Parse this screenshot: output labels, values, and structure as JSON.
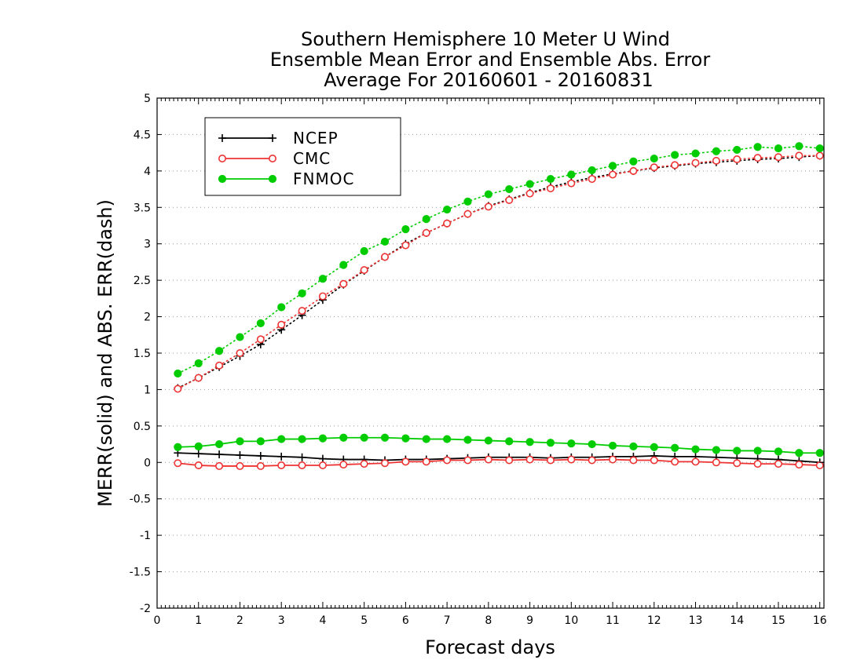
{
  "chart_data": {
    "type": "line",
    "title": [
      "Southern Hemisphere 10 Meter U Wind",
      "Ensemble Mean Error and Ensemble Abs. Error",
      "Average For 20160601 - 20160831"
    ],
    "xlabel": "Forecast days",
    "ylabel": "MERR(solid) and ABS. ERR(dash)",
    "xlim": [
      0,
      16.1
    ],
    "ylim": [
      -2,
      5
    ],
    "xticks": [
      0,
      1,
      2,
      3,
      4,
      5,
      6,
      7,
      8,
      9,
      10,
      11,
      12,
      13,
      14,
      15,
      16
    ],
    "xtick_labels": [
      "0",
      "1",
      "2",
      "3",
      "4",
      "5",
      "6",
      "7",
      "8",
      "9",
      "10",
      "11",
      "12",
      "13",
      "14",
      "15",
      "16"
    ],
    "yticks": [
      -2,
      -1.5,
      -1,
      -0.5,
      0,
      0.5,
      1,
      1.5,
      2,
      2.5,
      3,
      3.5,
      4,
      4.5,
      5
    ],
    "ytick_labels": [
      "-2",
      "-1.5",
      "-1",
      "-0.5",
      "0",
      "0.5",
      "1",
      "1.5",
      "2",
      "2.5",
      "3",
      "3.5",
      "4",
      "4.5",
      "5"
    ],
    "grid": "horizontal dotted",
    "legend_position": "top-left",
    "x": [
      0.5,
      1,
      1.5,
      2,
      2.5,
      3,
      3.5,
      4,
      4.5,
      5,
      5.5,
      6,
      6.5,
      7,
      7.5,
      8,
      8.5,
      9,
      9.5,
      10,
      10.5,
      11,
      11.5,
      12,
      12.5,
      13,
      13.5,
      14,
      14.5,
      15,
      15.5,
      16
    ],
    "series": [
      {
        "name": "NCEP",
        "color": "#000000",
        "marker": "plus",
        "mean_error": [
          0.13,
          0.12,
          0.11,
          0.1,
          0.09,
          0.08,
          0.07,
          0.05,
          0.04,
          0.04,
          0.03,
          0.04,
          0.04,
          0.05,
          0.06,
          0.07,
          0.07,
          0.07,
          0.06,
          0.07,
          0.07,
          0.08,
          0.08,
          0.09,
          0.08,
          0.08,
          0.07,
          0.06,
          0.05,
          0.04,
          0.02,
          0.0
        ],
        "abs_error": [
          1.02,
          1.16,
          1.31,
          1.46,
          1.62,
          1.82,
          2.02,
          2.23,
          2.44,
          2.63,
          2.82,
          3.0,
          3.15,
          3.28,
          3.41,
          3.52,
          3.61,
          3.7,
          3.78,
          3.85,
          3.91,
          3.96,
          4.0,
          4.04,
          4.07,
          4.1,
          4.12,
          4.14,
          4.16,
          4.17,
          4.19,
          4.21
        ]
      },
      {
        "name": "CMC",
        "color": "#ee3333",
        "marker": "open-circle",
        "mean_error": [
          -0.01,
          -0.04,
          -0.05,
          -0.05,
          -0.05,
          -0.04,
          -0.04,
          -0.04,
          -0.03,
          -0.02,
          -0.01,
          0.01,
          0.01,
          0.03,
          0.03,
          0.04,
          0.03,
          0.04,
          0.03,
          0.04,
          0.03,
          0.04,
          0.03,
          0.03,
          0.01,
          0.01,
          0.0,
          -0.01,
          -0.02,
          -0.02,
          -0.03,
          -0.04
        ],
        "abs_error": [
          1.01,
          1.16,
          1.33,
          1.5,
          1.69,
          1.89,
          2.08,
          2.28,
          2.45,
          2.64,
          2.82,
          2.98,
          3.15,
          3.28,
          3.41,
          3.51,
          3.6,
          3.69,
          3.76,
          3.83,
          3.89,
          3.95,
          4.0,
          4.05,
          4.08,
          4.11,
          4.14,
          4.16,
          4.18,
          4.19,
          4.21,
          4.21
        ]
      },
      {
        "name": "FNMOC",
        "color": "#00cc00",
        "marker": "filled-circle",
        "mean_error": [
          0.21,
          0.22,
          0.25,
          0.29,
          0.29,
          0.32,
          0.32,
          0.33,
          0.34,
          0.34,
          0.34,
          0.33,
          0.32,
          0.32,
          0.31,
          0.3,
          0.29,
          0.28,
          0.27,
          0.26,
          0.25,
          0.23,
          0.22,
          0.21,
          0.2,
          0.18,
          0.17,
          0.16,
          0.16,
          0.15,
          0.13,
          0.13
        ],
        "abs_error": [
          1.22,
          1.36,
          1.53,
          1.72,
          1.91,
          2.13,
          2.32,
          2.52,
          2.71,
          2.9,
          3.03,
          3.2,
          3.34,
          3.47,
          3.58,
          3.68,
          3.75,
          3.82,
          3.89,
          3.95,
          4.01,
          4.07,
          4.13,
          4.17,
          4.22,
          4.24,
          4.27,
          4.29,
          4.33,
          4.31,
          4.34,
          4.31
        ]
      }
    ]
  }
}
